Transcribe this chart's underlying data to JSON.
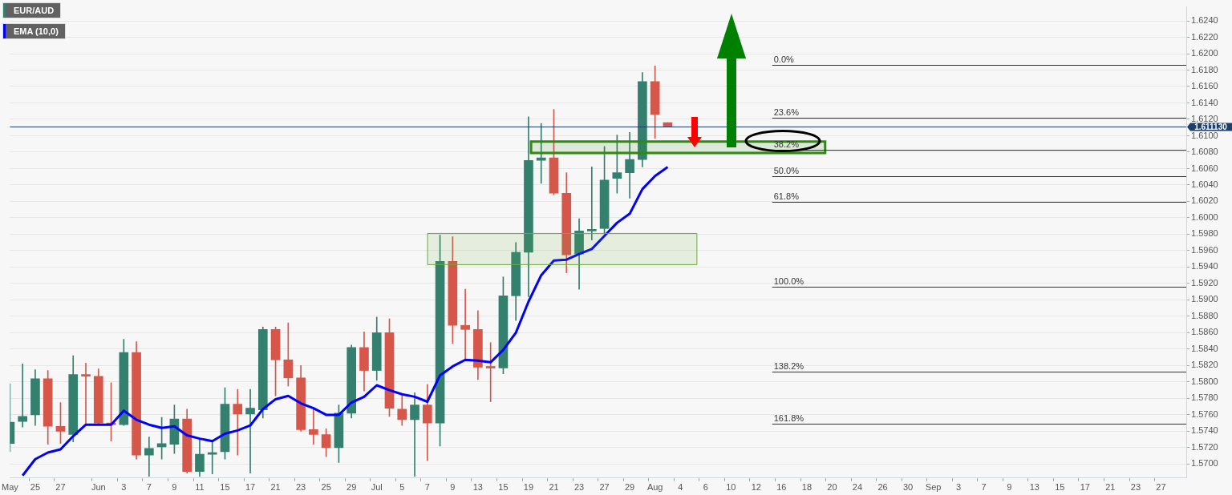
{
  "chart_data": {
    "type": "candlestick",
    "categories": [
      "May",
      null,
      "25",
      null,
      "27",
      null,
      null,
      "Jun",
      null,
      "3",
      null,
      "7",
      null,
      "9",
      null,
      "11",
      null,
      "15",
      null,
      "17",
      null,
      "21",
      null,
      "23",
      null,
      "25",
      null,
      "29",
      null,
      "Jul",
      null,
      "5",
      null,
      "7",
      null,
      "9",
      null,
      "13",
      null,
      "15",
      null,
      "19",
      null,
      "21",
      null,
      "23",
      null,
      "27",
      null,
      "29",
      null,
      "Aug",
      null,
      "4",
      null,
      "6",
      null,
      "10",
      null,
      "12",
      null,
      "16",
      null,
      "18",
      null,
      "20",
      null,
      "24",
      null,
      "26",
      null,
      "30",
      null,
      "Sep",
      null,
      "3",
      null,
      "7",
      null,
      "9",
      null,
      "13",
      null,
      "15",
      null,
      "17",
      null,
      "21",
      null,
      "23",
      null,
      "27",
      null,
      null
    ],
    "series": [
      {
        "name": "EUR/AUD",
        "color": "#33806f",
        "colors": [
          "#33806f",
          "#33806f",
          "#33806f",
          "#d6574a",
          "#d6574a",
          "#33806f",
          "#d6574a",
          "#d6574a",
          "#d6574a",
          "#33806f",
          "#d6574a",
          "#33806f",
          "#33806f",
          "#33806f",
          "#d6574a",
          "#33806f",
          "#33806f",
          "#33806f",
          "#d6574a",
          "#33806f",
          "#33806f",
          "#d6574a",
          "#d6574a",
          "#d6574a",
          "#d6574a",
          "#d6574a",
          "#33806f",
          "#33806f",
          "#d6574a",
          "#33806f",
          "#d6574a",
          "#d6574a",
          "#33806f",
          "#d6574a",
          "#33806f",
          "#d6574a",
          "#d6574a",
          "#d6574a",
          "#d6574a",
          "#33806f",
          "#33806f",
          "#33806f",
          "#33806f",
          "#d6574a",
          "#d6574a",
          "#33806f",
          "#33806f",
          "#33806f",
          "#33806f",
          "#33806f",
          "#33806f",
          "#d6574a",
          "#d6574a",
          null,
          null,
          null,
          null,
          null,
          null,
          null,
          null,
          null,
          null,
          null,
          null,
          null,
          null,
          null,
          null,
          null,
          null,
          null,
          null,
          null,
          null,
          null,
          null,
          null,
          null,
          null,
          null,
          null,
          null,
          null,
          null,
          null,
          null,
          null,
          null,
          null,
          null,
          null,
          null,
          null
        ],
        "ohlc": [
          [
            1.5725,
            1.5798,
            1.5715,
            1.5751
          ],
          [
            1.5752,
            1.5822,
            1.5745,
            1.5758
          ],
          [
            1.576,
            1.5815,
            1.5747,
            1.5804
          ],
          [
            1.5804,
            1.5814,
            1.5724,
            1.5746
          ],
          [
            1.5746,
            1.5775,
            1.5725,
            1.574
          ],
          [
            1.5736,
            1.5832,
            1.5727,
            1.5809
          ],
          [
            1.5809,
            1.5823,
            1.5749,
            1.5807
          ],
          [
            1.5807,
            1.5816,
            1.5749,
            1.575
          ],
          [
            1.5749,
            1.5799,
            1.5728,
            1.5748
          ],
          [
            1.5748,
            1.5852,
            1.5747,
            1.5836
          ],
          [
            1.5836,
            1.5849,
            1.5706,
            1.5711
          ],
          [
            1.5711,
            1.5733,
            1.5685,
            1.5719
          ],
          [
            1.5721,
            1.5757,
            1.5706,
            1.5725
          ],
          [
            1.5724,
            1.5772,
            1.5713,
            1.5755
          ],
          [
            1.5755,
            1.5767,
            1.5689,
            1.5691
          ],
          [
            1.5691,
            1.5731,
            1.5685,
            1.5712
          ],
          [
            1.5712,
            1.5729,
            1.5688,
            1.5714
          ],
          [
            1.5715,
            1.5793,
            1.5706,
            1.5773
          ],
          [
            1.5773,
            1.5791,
            1.5711,
            1.5761
          ],
          [
            1.5761,
            1.5791,
            1.5689,
            1.5768
          ],
          [
            1.5766,
            1.5867,
            1.5756,
            1.5864
          ],
          [
            1.5864,
            1.5867,
            1.5783,
            1.5827
          ],
          [
            1.5827,
            1.5872,
            1.5795,
            1.5805
          ],
          [
            1.5805,
            1.582,
            1.574,
            1.5742
          ],
          [
            1.5742,
            1.5768,
            1.5724,
            1.5736
          ],
          [
            1.5736,
            1.5743,
            1.5709,
            1.572
          ],
          [
            1.572,
            1.5772,
            1.5702,
            1.5762
          ],
          [
            1.5762,
            1.5845,
            1.5756,
            1.5842
          ],
          [
            1.5842,
            1.5861,
            1.5789,
            1.5814
          ],
          [
            1.5814,
            1.5879,
            1.5802,
            1.586
          ],
          [
            1.586,
            1.5877,
            1.5758,
            1.5768
          ],
          [
            1.5767,
            1.5783,
            1.5747,
            1.5754
          ],
          [
            1.5754,
            1.5787,
            1.5685,
            1.5772
          ],
          [
            1.5772,
            1.5797,
            1.5704,
            1.575
          ],
          [
            1.575,
            1.5979,
            1.5722,
            1.5947
          ],
          [
            1.5947,
            1.5977,
            1.5847,
            1.5869
          ],
          [
            1.5869,
            1.5913,
            1.5827,
            1.5864
          ],
          [
            1.5864,
            1.5887,
            1.5803,
            1.5818
          ],
          [
            1.5818,
            1.5848,
            1.5776,
            1.5817
          ],
          [
            1.5817,
            1.5928,
            1.581,
            1.5905
          ],
          [
            1.5905,
            1.597,
            1.5875,
            1.5958
          ],
          [
            1.5958,
            1.6123,
            1.5904,
            1.607
          ],
          [
            1.607,
            1.6115,
            1.6042,
            1.6073
          ],
          [
            1.6073,
            1.6132,
            1.6028,
            1.603
          ],
          [
            1.603,
            1.6055,
            1.5933,
            1.5955
          ],
          [
            1.5956,
            1.5999,
            1.5913,
            1.5984
          ],
          [
            1.5984,
            1.6062,
            1.5973,
            1.5986
          ],
          [
            1.5987,
            1.6087,
            1.5981,
            1.6046
          ],
          [
            1.6048,
            1.6101,
            1.603,
            1.6055
          ],
          [
            1.6055,
            1.6104,
            1.6024,
            1.6071
          ],
          [
            1.6071,
            1.6177,
            1.6062,
            1.6166
          ],
          [
            1.6166,
            1.6185,
            1.6097,
            1.6126
          ],
          [
            1.6116,
            1.6116,
            1.6111,
            1.6111
          ],
          null,
          null,
          null,
          null,
          null,
          null,
          null,
          null,
          null,
          null,
          null,
          null,
          null,
          null,
          null,
          null,
          null,
          null,
          null,
          null,
          null,
          null,
          null,
          null,
          null,
          null,
          null,
          null,
          null,
          null,
          null,
          null,
          null,
          null,
          null,
          null,
          null,
          null,
          null,
          null,
          null
        ]
      },
      {
        "name": "EMA (10,0)",
        "type": "line",
        "color": "#0000ff",
        "marker": "none",
        "values": [
          null,
          1.5686,
          1.5706,
          1.5714,
          1.5718,
          1.5734,
          1.5748,
          1.5748,
          1.5748,
          1.5765,
          1.5754,
          1.5748,
          1.5744,
          1.5746,
          1.5735,
          1.5731,
          1.5728,
          1.5737,
          1.5741,
          1.5747,
          1.5767,
          1.5779,
          1.5783,
          1.5774,
          1.5768,
          1.576,
          1.576,
          1.5775,
          1.5782,
          1.5796,
          1.579,
          1.5785,
          1.5782,
          1.5776,
          1.5808,
          1.5819,
          1.5827,
          1.5826,
          1.5824,
          1.5839,
          1.586,
          1.5898,
          1.593,
          1.5948,
          1.5949,
          1.5956,
          1.5962,
          1.5978,
          1.5994,
          1.6005,
          1.6035,
          1.6051,
          1.6062,
          null,
          null,
          null,
          null,
          null,
          null,
          null,
          null,
          null,
          null,
          null,
          null,
          null,
          null,
          null,
          null,
          null,
          null,
          null,
          null,
          null,
          null,
          null,
          null,
          null,
          null,
          null,
          null,
          null,
          null,
          null,
          null,
          null,
          null,
          null,
          null,
          null,
          null,
          null,
          null,
          null
        ]
      }
    ],
    "ylim": [
      1.5683,
      1.6257
    ],
    "yticks": [
      {
        "value": 1.57,
        "label": "1.5700"
      },
      {
        "value": 1.572,
        "label": "1.5720"
      },
      {
        "value": 1.574,
        "label": "1.5740"
      },
      {
        "value": 1.576,
        "label": "1.5760"
      },
      {
        "value": 1.578,
        "label": "1.5780"
      },
      {
        "value": 1.58,
        "label": "1.5800"
      },
      {
        "value": 1.582,
        "label": "1.5820"
      },
      {
        "value": 1.584,
        "label": "1.5840"
      },
      {
        "value": 1.586,
        "label": "1.5860"
      },
      {
        "value": 1.588,
        "label": "1.5880"
      },
      {
        "value": 1.59,
        "label": "1.5900"
      },
      {
        "value": 1.592,
        "label": "1.5920"
      },
      {
        "value": 1.594,
        "label": "1.5940"
      },
      {
        "value": 1.596,
        "label": "1.5960"
      },
      {
        "value": 1.598,
        "label": "1.5980"
      },
      {
        "value": 1.6,
        "label": "1.6000"
      },
      {
        "value": 1.602,
        "label": "1.6020"
      },
      {
        "value": 1.604,
        "label": "1.6040"
      },
      {
        "value": 1.606,
        "label": "1.6060"
      },
      {
        "value": 1.608,
        "label": "1.6080"
      },
      {
        "value": 1.61,
        "label": "1.6100"
      },
      {
        "value": 1.612,
        "label": "1.6120"
      },
      {
        "value": 1.614,
        "label": "1.6140"
      },
      {
        "value": 1.616,
        "label": "1.6160"
      },
      {
        "value": 1.618,
        "label": "1.6180"
      },
      {
        "value": 1.62,
        "label": "1.6200"
      },
      {
        "value": 1.622,
        "label": "1.6220"
      },
      {
        "value": 1.624,
        "label": "1.6240"
      }
    ],
    "ref_lines": [
      {
        "axis": "y",
        "value": 1.6186,
        "color": "#333333"
      },
      {
        "axis": "y",
        "value": 1.6122,
        "color": "#333333"
      },
      {
        "axis": "y",
        "value": 1.6083,
        "color": "#333333"
      },
      {
        "axis": "y",
        "value": 1.6051,
        "color": "#333333"
      },
      {
        "axis": "y",
        "value": 1.6019,
        "color": "#333333"
      },
      {
        "axis": "y",
        "value": 1.5916,
        "color": "#333333"
      },
      {
        "axis": "y",
        "value": 1.5813,
        "color": "#333333"
      },
      {
        "axis": "y",
        "value": 1.5749,
        "color": "#333333"
      },
      {
        "axis": "y",
        "value": 1.61113,
        "label": "1.611130",
        "color": "#1e3f6e"
      }
    ],
    "annotations": [
      {
        "text": "0.0%",
        "y": 1.6186
      },
      {
        "text": "23.6%",
        "y": 1.6122
      },
      {
        "text": "38.2%",
        "y": 1.6083
      },
      {
        "text": "50.0%",
        "y": 1.6051
      },
      {
        "text": "61.8%",
        "y": 1.6019
      },
      {
        "text": "100.0%",
        "y": 1.5916
      },
      {
        "text": "138.2%",
        "y": 1.5813
      },
      {
        "text": "161.8%",
        "y": 1.5749
      }
    ],
    "bands": [
      {
        "axis": "y",
        "from": 1.5943,
        "to": 1.5981,
        "color": "#6aaa3a"
      },
      {
        "axis": "y",
        "from": 1.6079,
        "to": 1.6093,
        "color": "#2e8b0e"
      }
    ],
    "grid": "y",
    "legend": "top left"
  }
}
